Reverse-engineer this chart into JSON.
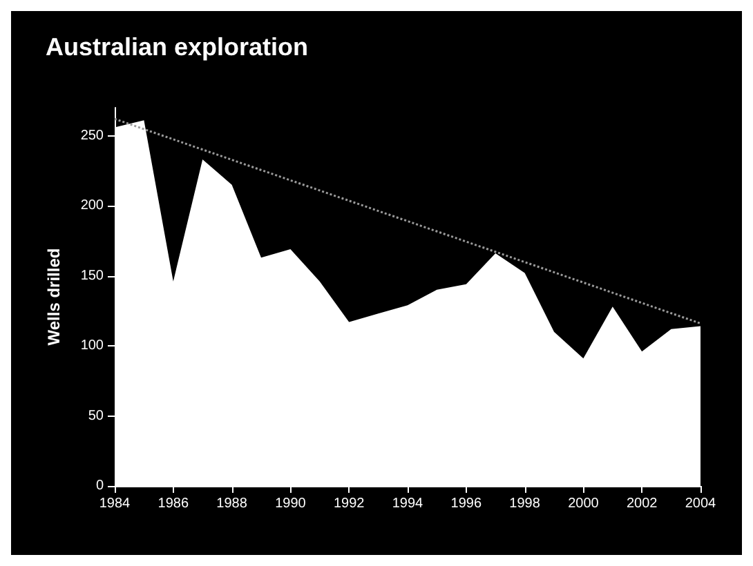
{
  "chart_data": {
    "type": "area",
    "title": "Australian exploration",
    "ylabel": "Wells drilled",
    "x": [
      1984,
      1985,
      1986,
      1987,
      1988,
      1989,
      1990,
      1991,
      1992,
      1993,
      1994,
      1995,
      1996,
      1997,
      1998,
      1999,
      2000,
      2001,
      2002,
      2003,
      2004
    ],
    "series": [
      {
        "color": "#ffffff",
        "values": [
          256,
          261,
          146,
          233,
          215,
          163,
          169,
          146,
          117,
          123,
          129,
          140,
          144,
          166,
          152,
          110,
          91,
          128,
          96,
          112,
          114
        ]
      },
      {
        "type": "line",
        "color": "#9a9a9a",
        "line_style": "dotted",
        "x": [
          1984,
          2004
        ],
        "values": [
          262,
          116
        ]
      }
    ],
    "xlim": [
      1984,
      2004
    ],
    "xticks": [
      1984,
      1986,
      1988,
      1990,
      1992,
      1994,
      1996,
      1998,
      2000,
      2002,
      2004
    ],
    "ylim": [
      0,
      270
    ],
    "yticks": [
      0,
      50,
      100,
      150,
      200,
      250
    ],
    "grid": false
  }
}
